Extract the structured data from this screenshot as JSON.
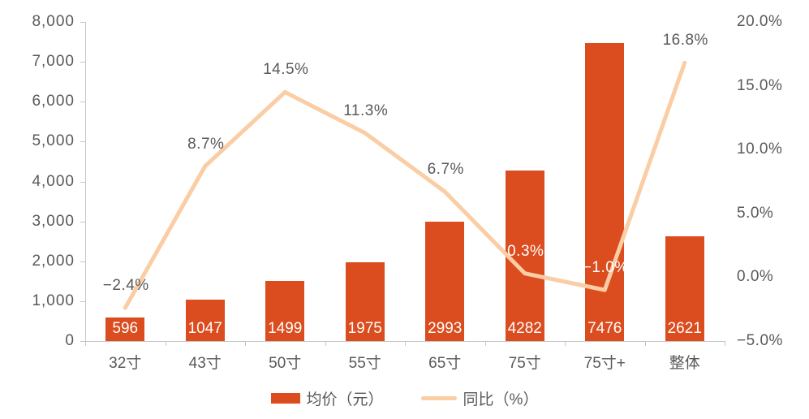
{
  "chart_data": {
    "type": "combo-bar-line",
    "title": "",
    "categories": [
      "32寸",
      "43寸",
      "50寸",
      "55寸",
      "65寸",
      "75寸",
      "75寸+",
      "整体"
    ],
    "series": [
      {
        "name": "均价（元）",
        "type": "bar",
        "axis": "left",
        "values": [
          596,
          1047,
          1499,
          1975,
          2993,
          4282,
          7476,
          2621
        ],
        "labels": [
          "596",
          "1047",
          "1499",
          "1975",
          "2993",
          "4282",
          "7476",
          "2621"
        ]
      },
      {
        "name": "同比（%）",
        "type": "line",
        "axis": "right",
        "values": [
          -2.4,
          8.7,
          14.5,
          11.3,
          6.7,
          0.3,
          -1.0,
          16.8
        ],
        "labels": [
          "−2.4%",
          "8.7%",
          "14.5%",
          "11.3%",
          "6.7%",
          "0.3%",
          "−1.0%",
          "16.8%"
        ]
      }
    ],
    "left_axis": {
      "min": 0,
      "max": 8000,
      "step": 1000,
      "tick_labels": [
        "0",
        "1,000",
        "2,000",
        "3,000",
        "4,000",
        "5,000",
        "6,000",
        "7,000",
        "8,000"
      ]
    },
    "right_axis": {
      "min": -5,
      "max": 20,
      "step": 5,
      "tick_labels": [
        "−5.0%",
        "0.0%",
        "5.0%",
        "10.0%",
        "15.0%",
        "20.0%"
      ]
    },
    "legend_position": "bottom",
    "grid": false,
    "colors": {
      "bar": "#DB4C1E",
      "line": "#FACDA4",
      "text": "#595959",
      "axis": "#C6C6C6",
      "bar_label": "#FFFFFF"
    }
  }
}
